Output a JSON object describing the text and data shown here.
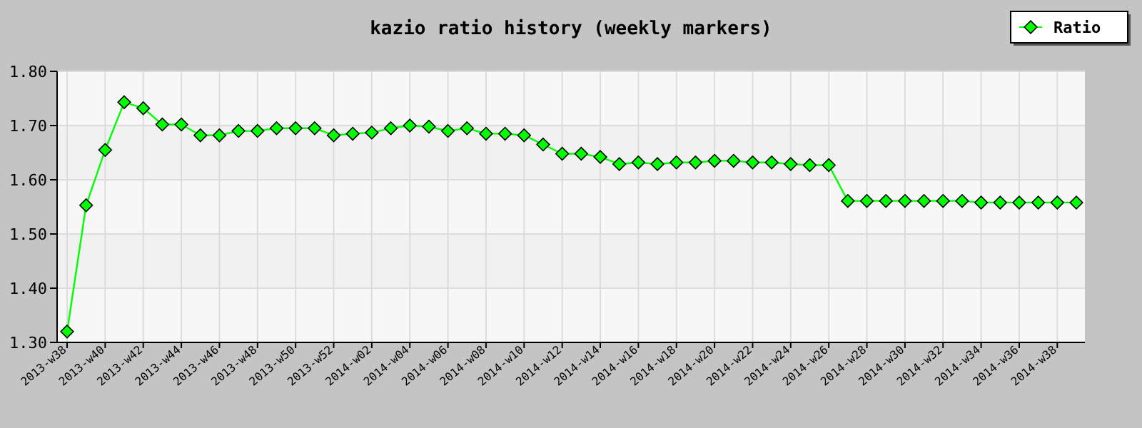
{
  "chart_data": {
    "type": "line",
    "title": "kazio ratio history (weekly markers)",
    "categories": [
      "2013-w38",
      null,
      "2013-w40",
      null,
      "2013-w42",
      null,
      "2013-w44",
      null,
      "2013-w46",
      null,
      "2013-w48",
      null,
      "2013-w50",
      null,
      "2013-w52",
      null,
      "2014-w02",
      null,
      "2014-w04",
      null,
      "2014-w06",
      null,
      "2014-w08",
      null,
      "2014-w10",
      null,
      "2014-w12",
      null,
      "2014-w14",
      null,
      "2014-w16",
      null,
      "2014-w18",
      null,
      "2014-w20",
      null,
      "2014-w22",
      null,
      "2014-w24",
      null,
      "2014-w26",
      null,
      "2014-w28",
      null,
      "2014-w30",
      null,
      "2014-w32",
      null,
      "2014-w34",
      null,
      "2014-w36",
      null,
      "2014-w38",
      null
    ],
    "series": [
      {
        "name": "Ratio",
        "color": "#00ff00",
        "values": [
          1.32,
          1.553,
          1.655,
          1.743,
          1.732,
          1.702,
          1.702,
          1.682,
          1.682,
          1.69,
          1.69,
          1.695,
          1.695,
          1.695,
          1.682,
          1.685,
          1.687,
          1.695,
          1.7,
          1.698,
          1.69,
          1.695,
          1.685,
          1.685,
          1.682,
          1.665,
          1.648,
          1.648,
          1.642,
          1.629,
          1.632,
          1.629,
          1.632,
          1.632,
          1.635,
          1.635,
          1.632,
          1.632,
          1.629,
          1.627,
          1.627,
          1.561,
          1.561,
          1.561,
          1.561,
          1.561,
          1.561,
          1.561,
          1.558,
          1.558,
          1.558,
          1.558,
          1.558,
          1.558
        ]
      }
    ],
    "ylim": [
      1.3,
      1.8
    ],
    "yticks": [
      {
        "value": 1.3,
        "label": "1.30"
      },
      {
        "value": 1.4,
        "label": "1.40"
      },
      {
        "value": 1.5,
        "label": "1.50"
      },
      {
        "value": 1.6,
        "label": "1.60"
      },
      {
        "value": 1.7,
        "label": "1.70"
      },
      {
        "value": 1.8,
        "label": "1.80"
      }
    ],
    "grid": true,
    "legend": "top right",
    "marker": "diamond",
    "line_style": "solid"
  }
}
